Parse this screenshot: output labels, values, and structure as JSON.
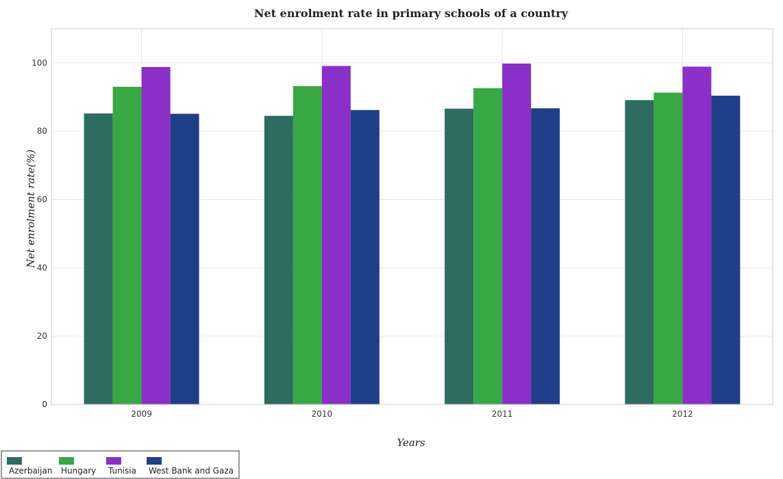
{
  "chart_data": {
    "type": "bar",
    "title": "Net enrolment rate in primary schools of a country",
    "xlabel": "Years",
    "ylabel": "Net enrolment rate(%)",
    "categories": [
      "2009",
      "2010",
      "2011",
      "2012"
    ],
    "series": [
      {
        "name": "Azerbaijan",
        "color": "#2e6b60",
        "values": [
          85.2,
          84.5,
          86.6,
          89.1
        ]
      },
      {
        "name": "Hungary",
        "color": "#37a843",
        "values": [
          93.0,
          93.2,
          92.6,
          91.3
        ]
      },
      {
        "name": "Tunisia",
        "color": "#8b2fc9",
        "values": [
          98.8,
          99.1,
          99.8,
          98.9
        ]
      },
      {
        "name": "West Bank and Gaza",
        "color": "#1f3f8a",
        "values": [
          85.1,
          86.2,
          86.7,
          90.4
        ]
      }
    ],
    "ylim": [
      0,
      110
    ],
    "yticks": [
      0,
      20,
      40,
      60,
      80,
      100
    ],
    "grid": true,
    "legend_position": "bottom-left"
  }
}
